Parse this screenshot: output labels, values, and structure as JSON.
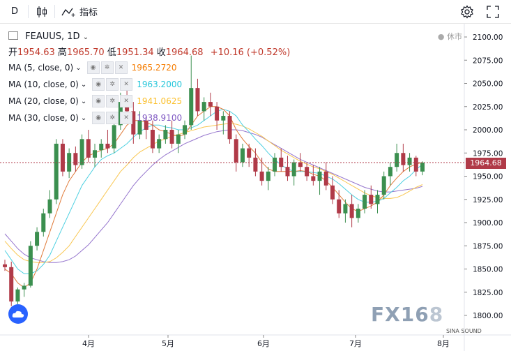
{
  "toolbar": {
    "interval": "D",
    "indicators_label": "指标"
  },
  "legend": {
    "symbol": "FEAUUS, 1D",
    "status": "休市",
    "open_label": "开",
    "open": "1954.63",
    "high_label": "高",
    "high": "1965.70",
    "low_label": "低",
    "low": "1951.34",
    "close_label": "收",
    "close": "1964.68",
    "change": "+10.16 (+0.52%)"
  },
  "ma": [
    {
      "label": "MA (5, close, 0)",
      "value": "1965.2720",
      "color": "#f57c00"
    },
    {
      "label": "MA (10, close, 0)",
      "value": "1963.2000",
      "color": "#26c6da"
    },
    {
      "label": "MA (20, close, 0)",
      "value": "1941.0625",
      "color": "#fbc02d"
    },
    {
      "label": "MA (30, close, 0)",
      "value": "1938.9100",
      "color": "#7e57c2"
    }
  ],
  "price_tag": "1964.68",
  "watermark": {
    "text": "FX16",
    "tail": "8"
  },
  "sina": "SINA SOUND",
  "chart_data": {
    "type": "candlestick",
    "y_axis_labels": [
      "2100.00",
      "2075.00",
      "2050.00",
      "2025.00",
      "2000.00",
      "1975.00",
      "1950.00",
      "1925.00",
      "1900.00",
      "1875.00",
      "1850.00",
      "1825.00",
      "1800.00"
    ],
    "x_axis_labels": [
      "4月",
      "5月",
      "6月",
      "7月",
      "8月"
    ],
    "ylim": [
      1790,
      2108
    ],
    "last_price": 1964.68,
    "candles": [
      [
        1855,
        1860,
        1848,
        1852
      ],
      [
        1852,
        1858,
        1810,
        1815
      ],
      [
        1815,
        1830,
        1812,
        1828
      ],
      [
        1828,
        1835,
        1820,
        1832
      ],
      [
        1832,
        1880,
        1830,
        1875
      ],
      [
        1875,
        1895,
        1870,
        1890
      ],
      [
        1890,
        1915,
        1885,
        1910
      ],
      [
        1910,
        1935,
        1905,
        1925
      ],
      [
        1925,
        1990,
        1920,
        1985
      ],
      [
        1985,
        1990,
        1950,
        1955
      ],
      [
        1955,
        1980,
        1948,
        1975
      ],
      [
        1975,
        1982,
        1955,
        1962
      ],
      [
        1962,
        1995,
        1958,
        1990
      ],
      [
        1990,
        2000,
        1965,
        1970
      ],
      [
        1970,
        1985,
        1960,
        1978
      ],
      [
        1978,
        1990,
        1970,
        1985
      ],
      [
        1985,
        2000,
        1975,
        1980
      ],
      [
        1980,
        2010,
        1975,
        2005
      ],
      [
        2005,
        2040,
        2000,
        2030
      ],
      [
        2030,
        2045,
        2015,
        2020
      ],
      [
        2020,
        2030,
        1985,
        1995
      ],
      [
        1995,
        2020,
        1990,
        2010
      ],
      [
        2010,
        2015,
        1990,
        2000
      ],
      [
        2000,
        2010,
        1975,
        1980
      ],
      [
        1980,
        1995,
        1975,
        1990
      ],
      [
        1990,
        2005,
        1985,
        2000
      ],
      [
        2000,
        2010,
        1980,
        1985
      ],
      [
        1985,
        2000,
        1975,
        1995
      ],
      [
        1995,
        2010,
        1990,
        2005
      ],
      [
        2005,
        2080,
        2000,
        2045
      ],
      [
        2045,
        2055,
        2015,
        2020
      ],
      [
        2020,
        2035,
        2010,
        2030
      ],
      [
        2030,
        2040,
        2015,
        2025
      ],
      [
        2025,
        2030,
        2000,
        2010
      ],
      [
        2010,
        2020,
        1995,
        2015
      ],
      [
        2015,
        2020,
        1985,
        1990
      ],
      [
        1990,
        1995,
        1955,
        1965
      ],
      [
        1965,
        1985,
        1960,
        1980
      ],
      [
        1980,
        1985,
        1960,
        1970
      ],
      [
        1970,
        1980,
        1950,
        1955
      ],
      [
        1955,
        1970,
        1940,
        1945
      ],
      [
        1945,
        1960,
        1935,
        1955
      ],
      [
        1955,
        1975,
        1950,
        1970
      ],
      [
        1970,
        1980,
        1955,
        1960
      ],
      [
        1960,
        1972,
        1945,
        1950
      ],
      [
        1950,
        1968,
        1940,
        1965
      ],
      [
        1965,
        1975,
        1955,
        1960
      ],
      [
        1960,
        1965,
        1945,
        1950
      ],
      [
        1950,
        1962,
        1940,
        1945
      ],
      [
        1945,
        1960,
        1930,
        1955
      ],
      [
        1955,
        1965,
        1935,
        1940
      ],
      [
        1940,
        1950,
        1920,
        1925
      ],
      [
        1925,
        1935,
        1905,
        1910
      ],
      [
        1910,
        1925,
        1900,
        1920
      ],
      [
        1920,
        1930,
        1895,
        1905
      ],
      [
        1905,
        1920,
        1900,
        1915
      ],
      [
        1915,
        1935,
        1910,
        1930
      ],
      [
        1930,
        1940,
        1915,
        1920
      ],
      [
        1920,
        1935,
        1910,
        1930
      ],
      [
        1930,
        1955,
        1925,
        1950
      ],
      [
        1950,
        1965,
        1940,
        1960
      ],
      [
        1960,
        1985,
        1955,
        1975
      ],
      [
        1975,
        1985,
        1955,
        1962
      ],
      [
        1962,
        1975,
        1955,
        1970
      ],
      [
        1970,
        1972,
        1950,
        1955
      ],
      [
        1955,
        1966,
        1951,
        1964.68
      ]
    ],
    "ma_lines": {
      "ma5": [
        1850,
        1845,
        1835,
        1830,
        1835,
        1850,
        1870,
        1890,
        1910,
        1930,
        1945,
        1955,
        1965,
        1972,
        1975,
        1978,
        1980,
        1985,
        1995,
        2005,
        2010,
        2010,
        2008,
        2005,
        2000,
        1998,
        1995,
        1993,
        1995,
        2005,
        2015,
        2020,
        2025,
        2025,
        2022,
        2015,
        2000,
        1990,
        1982,
        1975,
        1965,
        1958,
        1955,
        1955,
        1955,
        1955,
        1956,
        1955,
        1952,
        1950,
        1945,
        1938,
        1930,
        1922,
        1915,
        1912,
        1915,
        1918,
        1922,
        1930,
        1940,
        1948,
        1955,
        1960,
        1963,
        1965
      ],
      "ma10": [
        1870,
        1860,
        1850,
        1845,
        1845,
        1848,
        1855,
        1865,
        1880,
        1895,
        1910,
        1925,
        1940,
        1950,
        1960,
        1968,
        1972,
        1975,
        1980,
        1985,
        1992,
        1998,
        2002,
        2005,
        2005,
        2003,
        2002,
        2000,
        2000,
        2002,
        2005,
        2010,
        2015,
        2020,
        2022,
        2020,
        2015,
        2005,
        1998,
        1990,
        1983,
        1975,
        1968,
        1962,
        1958,
        1955,
        1955,
        1955,
        1954,
        1953,
        1950,
        1947,
        1942,
        1936,
        1930,
        1925,
        1922,
        1922,
        1923,
        1926,
        1932,
        1938,
        1945,
        1950,
        1957,
        1963
      ],
      "ma20": [
        1880,
        1872,
        1865,
        1860,
        1858,
        1857,
        1857,
        1858,
        1862,
        1868,
        1875,
        1885,
        1895,
        1905,
        1915,
        1925,
        1935,
        1945,
        1955,
        1962,
        1970,
        1976,
        1980,
        1984,
        1988,
        1990,
        1993,
        1995,
        1997,
        1999,
        2001,
        2003,
        2004,
        2005,
        2006,
        2007,
        2006,
        2004,
        2001,
        1997,
        1993,
        1988,
        1983,
        1978,
        1974,
        1970,
        1966,
        1963,
        1960,
        1958,
        1955,
        1952,
        1948,
        1944,
        1940,
        1936,
        1932,
        1929,
        1927,
        1926,
        1926,
        1927,
        1930,
        1934,
        1938,
        1941
      ],
      "ma30": [
        1888,
        1880,
        1872,
        1866,
        1862,
        1860,
        1858,
        1857,
        1857,
        1858,
        1860,
        1864,
        1870,
        1876,
        1884,
        1892,
        1900,
        1910,
        1920,
        1930,
        1940,
        1948,
        1955,
        1962,
        1968,
        1973,
        1977,
        1981,
        1985,
        1988,
        1991,
        1994,
        1996,
        1998,
        1999,
        2000,
        2000,
        1999,
        1997,
        1995,
        1992,
        1988,
        1984,
        1980,
        1976,
        1972,
        1968,
        1965,
        1962,
        1959,
        1956,
        1953,
        1950,
        1947,
        1944,
        1941,
        1938,
        1936,
        1934,
        1933,
        1933,
        1934,
        1935,
        1936,
        1937,
        1939
      ]
    }
  }
}
